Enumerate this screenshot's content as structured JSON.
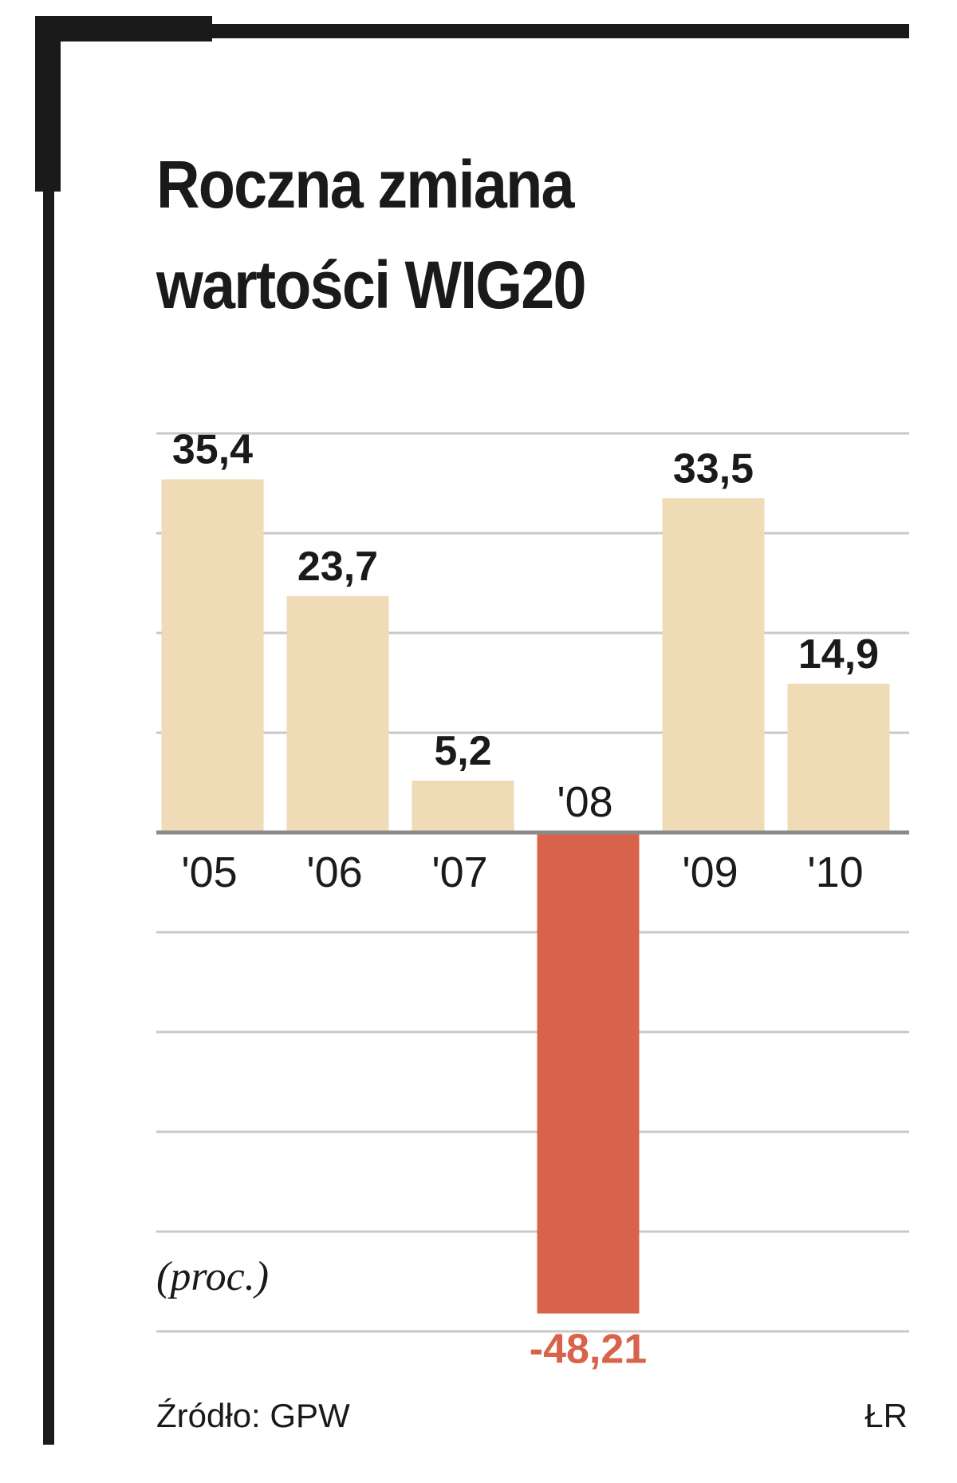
{
  "title_lines": [
    "Roczna zmiana",
    "wartości WIG20"
  ],
  "unit_label": "(proc.)",
  "source": "Źródło: GPW",
  "credit": "ŁR",
  "colors": {
    "positive_bar": "#efdcb6",
    "negative_bar": "#d9634a",
    "negative_label": "#d9634a",
    "grid": "#c8c8c8",
    "axis": "#8a8a8a",
    "frame": "#1a1a1a",
    "text": "#1a1a1a"
  },
  "chart_data": {
    "type": "bar",
    "title": "Roczna zmiana wartości WIG20",
    "ylabel": "(proc.)",
    "categories": [
      "'05",
      "'06",
      "'07",
      "'08",
      "'09",
      "'10"
    ],
    "values": [
      35.4,
      23.7,
      5.2,
      -48.21,
      33.5,
      14.9
    ],
    "value_labels": [
      "35,4",
      "23,7",
      "5,2",
      "-48,21",
      "33,5",
      "14,9"
    ],
    "ylim": [
      -50,
      40
    ],
    "grid": true,
    "grid_step": 10
  }
}
